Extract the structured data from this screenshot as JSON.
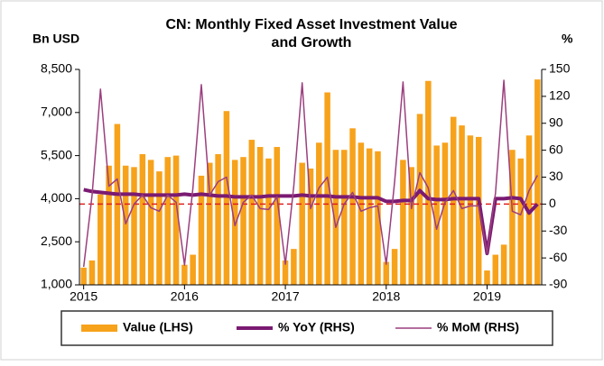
{
  "chart_data": {
    "type": "bar_line",
    "title": [
      "CN: Monthly Fixed Asset Investment Value",
      "and Growth"
    ],
    "y_axis_label": "Bn USD",
    "y2_axis_label": "%",
    "categories": [
      "2015",
      null,
      null,
      null,
      null,
      null,
      null,
      null,
      null,
      null,
      null,
      null,
      "2016",
      null,
      null,
      null,
      null,
      null,
      null,
      null,
      null,
      null,
      null,
      null,
      "2017",
      null,
      null,
      null,
      null,
      null,
      null,
      null,
      null,
      null,
      null,
      null,
      "2018",
      null,
      null,
      null,
      null,
      null,
      null,
      null,
      null,
      null,
      null,
      null,
      "2019",
      null,
      null,
      null,
      null,
      null,
      null
    ],
    "series": [
      {
        "name": "Value (LHS)",
        "kind": "bar",
        "axis": "y",
        "color": "#f7a21b",
        "values": [
          1600,
          1850,
          4150,
          5150,
          6600,
          5150,
          5100,
          5550,
          5350,
          4950,
          5450,
          5500,
          1700,
          2050,
          4800,
          5250,
          5550,
          7050,
          5350,
          5450,
          6050,
          5800,
          5400,
          5800,
          1850,
          2250,
          5250,
          5050,
          5950,
          7700,
          5700,
          5700,
          6450,
          5950,
          5750,
          5650,
          1800,
          2250,
          5350,
          5100,
          6950,
          8100,
          5850,
          5950,
          6850,
          6550,
          6200,
          6150,
          1500,
          2050,
          2400,
          5700,
          5400,
          6200,
          8150
        ]
      },
      {
        "name": "% YoY (RHS)",
        "kind": "line",
        "axis": "y2",
        "color": "#7a1a72",
        "width": 4,
        "values": [
          16,
          14,
          13,
          12,
          11,
          11,
          11,
          10,
          10,
          10,
          10,
          10,
          11,
          10,
          11,
          10,
          9,
          9,
          8,
          8,
          8,
          8,
          9,
          9,
          9,
          9,
          10,
          9,
          9,
          9,
          8,
          8,
          8,
          7,
          7,
          7,
          3,
          3,
          4,
          4,
          15,
          6,
          5,
          5,
          6,
          6,
          6,
          6,
          -55,
          6,
          6,
          7,
          6,
          -10,
          0
        ]
      },
      {
        "name": "% MoM (RHS)",
        "kind": "line",
        "axis": "y2",
        "color": "#9b3f7e",
        "width": 1.5,
        "values": [
          -70,
          10,
          128,
          20,
          28,
          -22,
          0,
          10,
          -4,
          -8,
          10,
          2,
          -68,
          18,
          133,
          10,
          25,
          30,
          -24,
          2,
          10,
          -5,
          -6,
          8,
          -67,
          20,
          135,
          -5,
          18,
          30,
          -26,
          0,
          13,
          -8,
          -4,
          -2,
          -67,
          25,
          136,
          -5,
          35,
          18,
          -28,
          2,
          15,
          -5,
          -2,
          -2,
          -55,
          12,
          138,
          -8,
          -12,
          15,
          32
        ]
      }
    ],
    "ylim": [
      1000,
      8500
    ],
    "yticks": [
      {
        "value": 1000,
        "label": "1,000"
      },
      {
        "value": 2500,
        "label": "2,500"
      },
      {
        "value": 4000,
        "label": "4,000"
      },
      {
        "value": 5500,
        "label": "5,500"
      },
      {
        "value": 7000,
        "label": "7,000"
      },
      {
        "value": 8500,
        "label": "8,500"
      }
    ],
    "y2lim": [
      -90,
      150
    ],
    "y2ticks": [
      -90,
      -60,
      -30,
      0,
      30,
      60,
      90,
      120,
      150
    ],
    "reference_line": {
      "axis": "y2",
      "value": 0,
      "color": "#e02020"
    },
    "legend": "bottom"
  }
}
